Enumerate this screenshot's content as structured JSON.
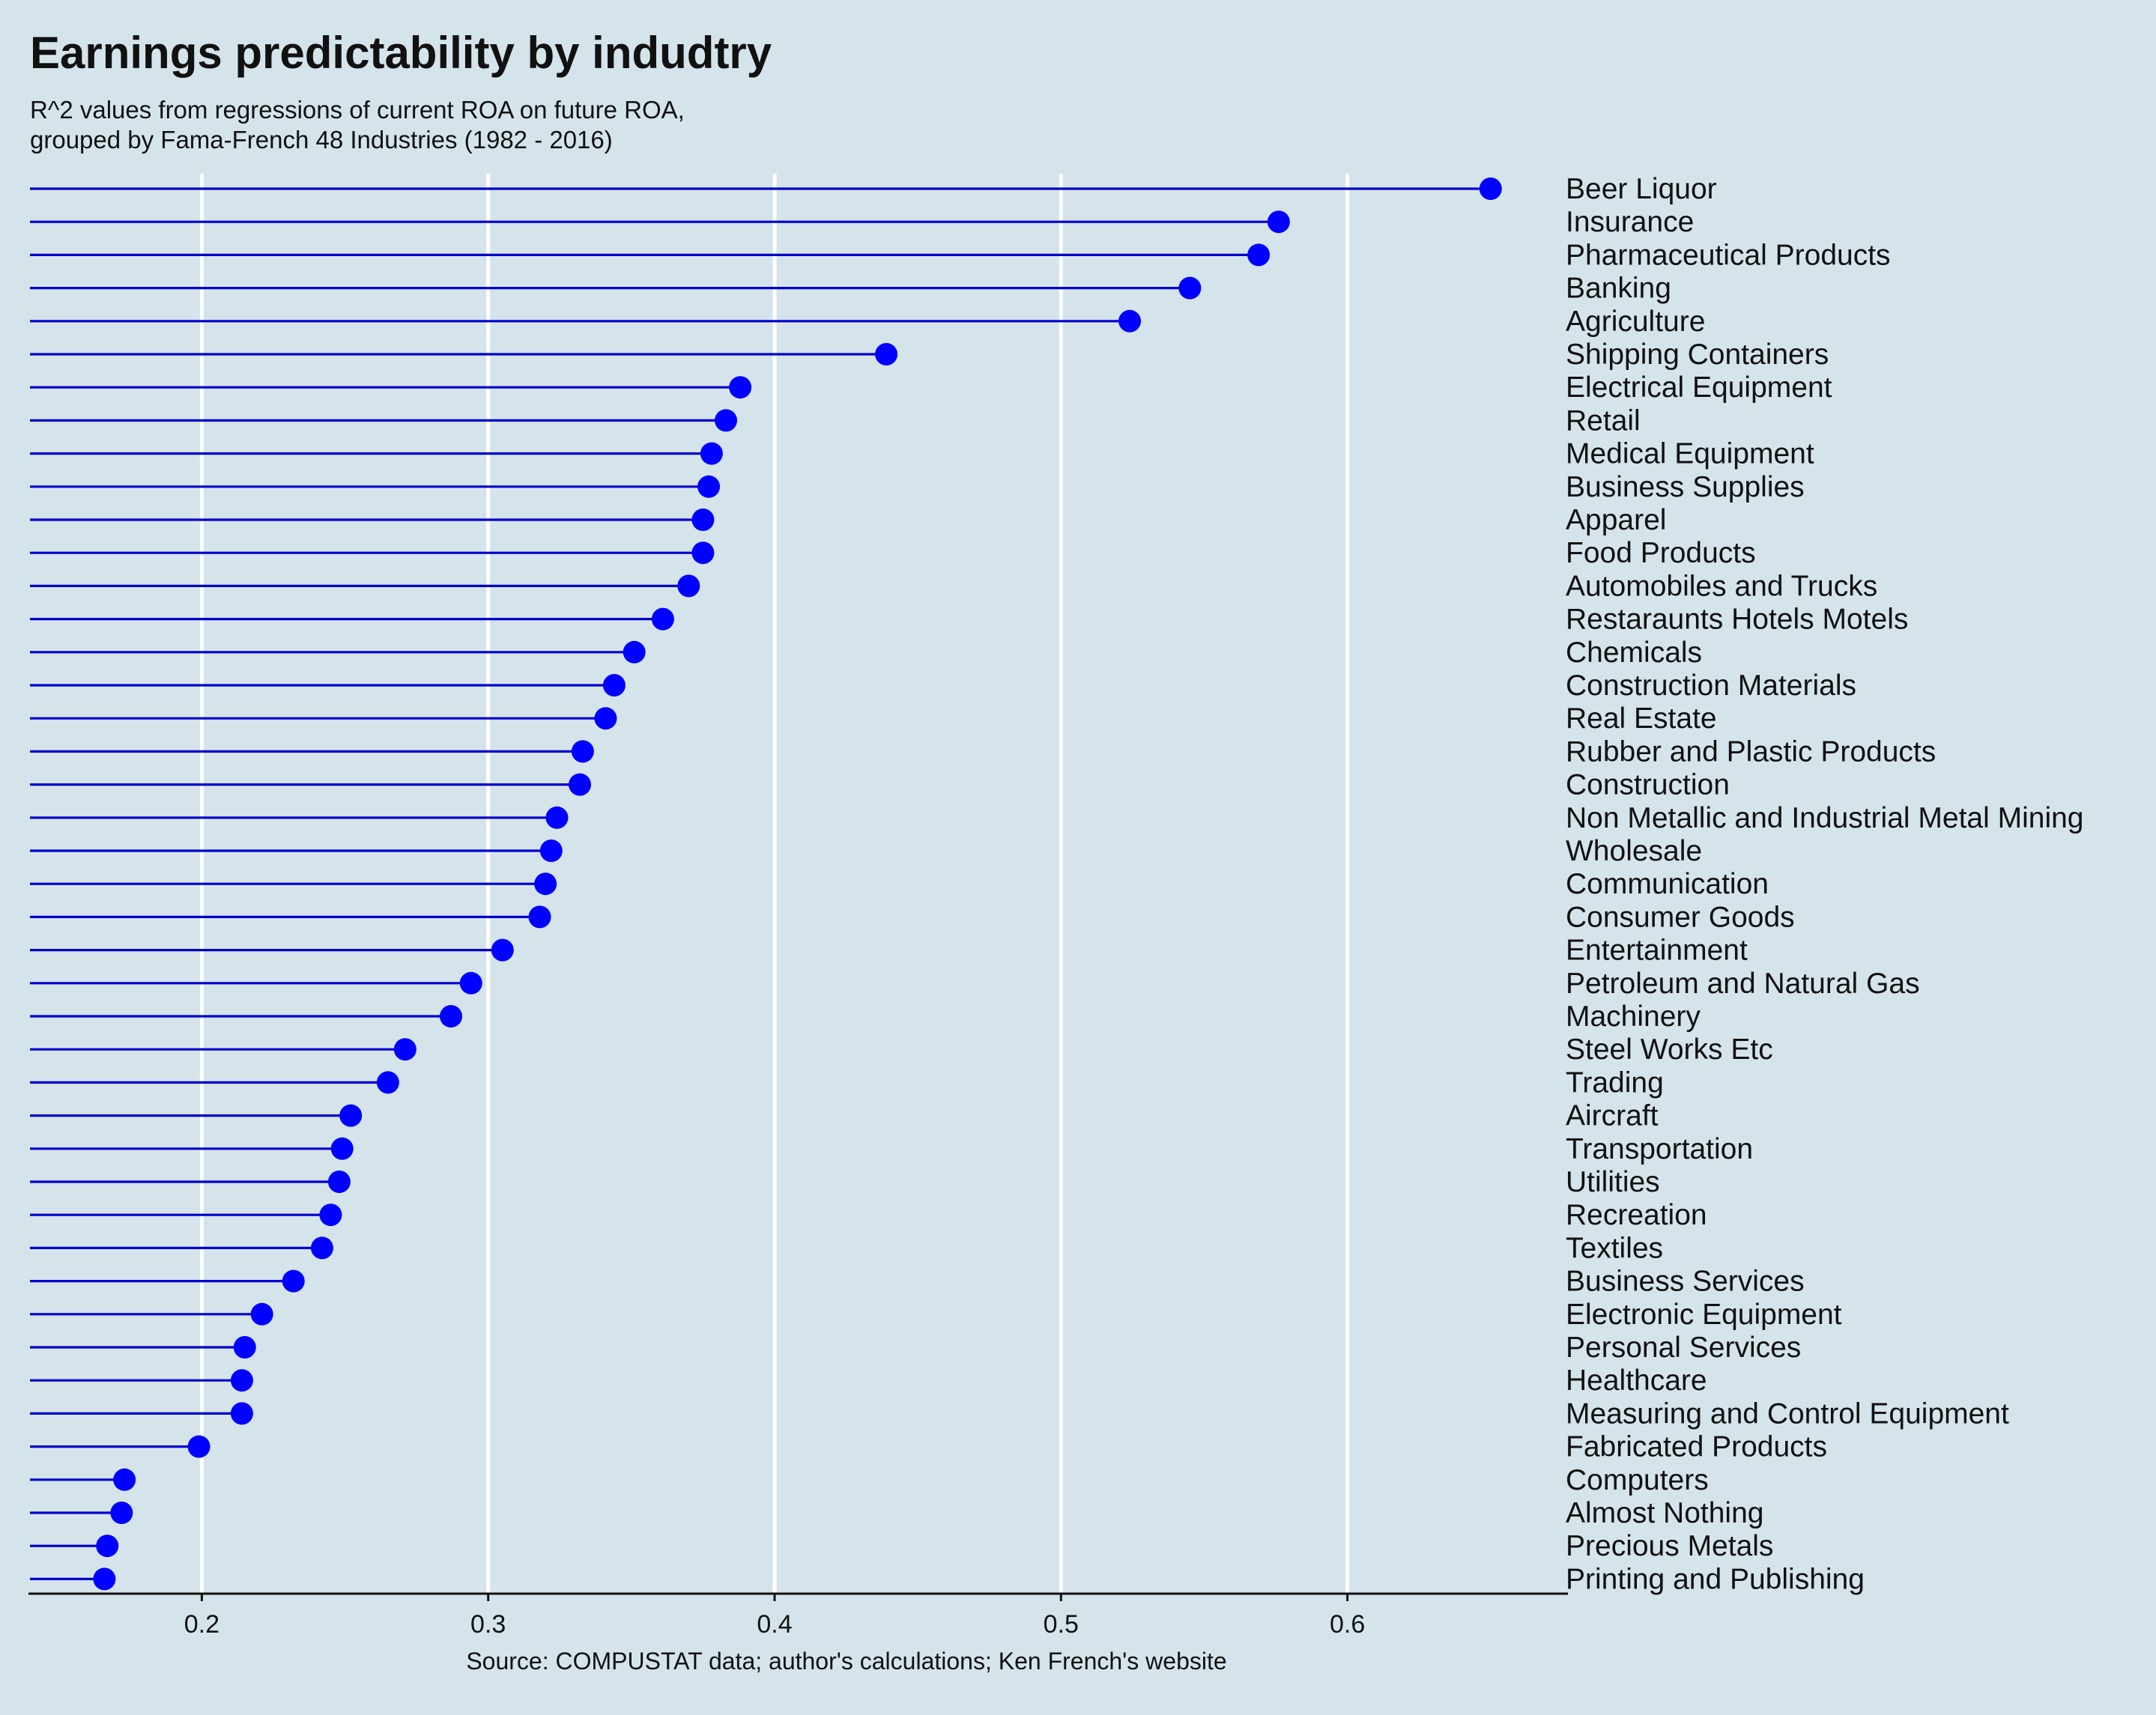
{
  "chart_data": {
    "type": "lollipop",
    "title": "Earnings predictability by indudtry",
    "subtitle": [
      "R^2 values from regressions of current ROA on future ROA,",
      "grouped by Fama-French 48 Industries (1982 - 2016)"
    ],
    "caption": "Source: COMPUSTAT data; author's calculations; Ken French's website",
    "xlabel": "",
    "ylabel": "",
    "xlim": [
      0.14,
      0.677
    ],
    "xticks": [
      0.2,
      0.3,
      0.4,
      0.5,
      0.6
    ],
    "xtick_labels": [
      "0.2",
      "0.3",
      "0.4",
      "0.5",
      "0.6"
    ],
    "grid": "vertical major lines only",
    "colors": {
      "point": "#0000ff",
      "stem": "#0000cd",
      "grid": "#ffffff",
      "background": "#d5e4eb"
    },
    "categories": [
      "Beer Liquor",
      "Insurance",
      "Pharmaceutical Products",
      "Banking",
      "Agriculture",
      "Shipping Containers",
      "Electrical Equipment",
      "Retail",
      "Medical Equipment",
      "Business Supplies",
      "Apparel",
      "Food Products",
      "Automobiles and Trucks",
      "Restaraunts Hotels Motels",
      "Chemicals",
      "Construction Materials",
      "Real Estate",
      "Rubber and Plastic Products",
      "Construction",
      "Non Metallic and Industrial Metal Mining",
      "Wholesale",
      "Communication",
      "Consumer Goods",
      "Entertainment",
      "Petroleum and Natural Gas",
      "Machinery",
      "Steel Works Etc",
      "Trading",
      "Aircraft",
      "Transportation",
      "Utilities",
      "Recreation",
      "Textiles",
      "Business Services",
      "Electronic Equipment",
      "Personal Services",
      "Healthcare",
      "Measuring and Control Equipment",
      "Fabricated Products",
      "Computers",
      "Almost Nothing",
      "Precious Metals",
      "Printing and Publishing"
    ],
    "values": [
      0.65,
      0.576,
      0.569,
      0.545,
      0.524,
      0.439,
      0.388,
      0.383,
      0.378,
      0.377,
      0.375,
      0.375,
      0.37,
      0.361,
      0.351,
      0.344,
      0.341,
      0.333,
      0.332,
      0.324,
      0.322,
      0.32,
      0.318,
      0.305,
      0.294,
      0.287,
      0.271,
      0.265,
      0.252,
      0.249,
      0.248,
      0.245,
      0.242,
      0.232,
      0.221,
      0.215,
      0.214,
      0.214,
      0.199,
      0.173,
      0.172,
      0.167,
      0.166
    ]
  }
}
